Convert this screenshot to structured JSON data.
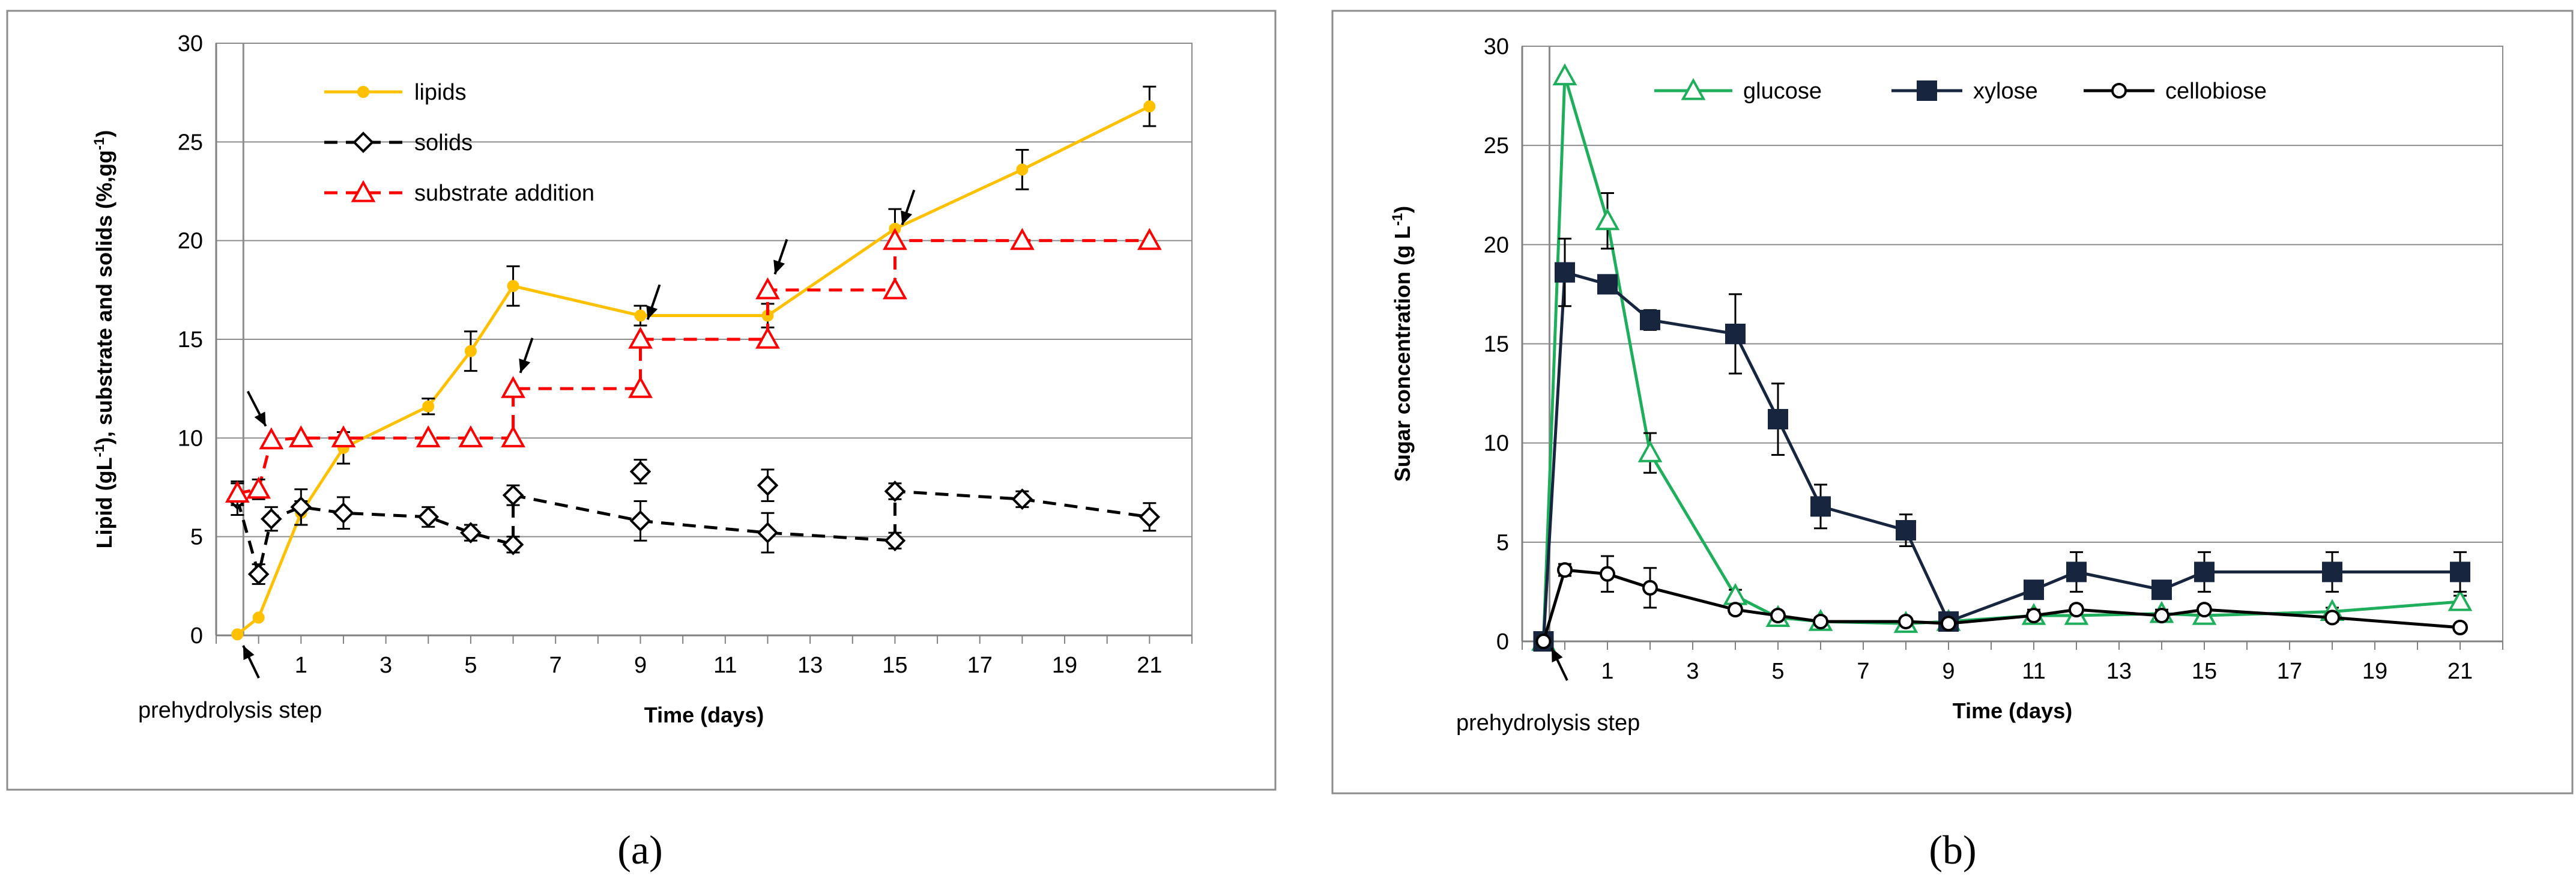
{
  "chart_data": [
    {
      "type": "line",
      "panel_label": "(a)",
      "xlabel": "Time (days)",
      "ylabel_parts": [
        "Lipid (gL",
        "-1",
        "), substrate and solids (%,gg",
        "-1",
        ")"
      ],
      "xlim": [
        -1,
        22
      ],
      "ylim": [
        0,
        30
      ],
      "xticks": [
        1,
        3,
        5,
        7,
        9,
        11,
        13,
        15,
        17,
        19,
        21
      ],
      "yticks": [
        0,
        5,
        10,
        15,
        20,
        25,
        30
      ],
      "grid": "horizontal",
      "legend_position": "top-left",
      "vertical_marker_x": -0.5,
      "annotation": "prehydrolysis step",
      "series": [
        {
          "name": "lipids",
          "color": "#FFC000",
          "marker": "circle-filled",
          "line": "solid",
          "x": [
            -0.5,
            0,
            1,
            2,
            4,
            5,
            6,
            9,
            12,
            15,
            18,
            21
          ],
          "values": [
            0.05,
            0.9,
            6.2,
            9.5,
            11.6,
            14.4,
            17.7,
            16.2,
            16.2,
            20.6,
            23.6,
            26.8
          ],
          "errors": [
            0,
            0,
            0.6,
            0.8,
            0.4,
            1.0,
            1.0,
            0.5,
            0.6,
            1.0,
            1.0,
            1.0
          ]
        },
        {
          "name": "solids",
          "color": "#000000",
          "marker": "diamond-open",
          "line": "dashed",
          "x": [
            -0.5,
            0,
            0.3,
            1,
            2,
            4,
            5,
            6,
            6,
            9,
            12,
            15,
            15,
            18,
            21
          ],
          "values": [
            6.9,
            3.1,
            5.9,
            6.5,
            6.2,
            6.0,
            5.2,
            4.6,
            7.1,
            5.8,
            5.2,
            4.8,
            7.3,
            6.9,
            6.0
          ],
          "errors": [
            0.8,
            0.5,
            0.6,
            0.9,
            0.8,
            0.5,
            0.4,
            0.4,
            0.5,
            1.0,
            1.0,
            0.4,
            0.4,
            0.4,
            0.7
          ],
          "extra_points": [
            {
              "x": 9,
              "y": 8.3,
              "error": 0.6
            },
            {
              "x": 12,
              "y": 7.6,
              "error": 0.8
            }
          ]
        },
        {
          "name": "substrate addition",
          "color": "#FF0000",
          "marker": "triangle-open",
          "line": "dashed",
          "x": [
            -0.5,
            0,
            0.3,
            1,
            2,
            4,
            5,
            6,
            6,
            9,
            9,
            12,
            12,
            15,
            15,
            18,
            21
          ],
          "values": [
            7.2,
            7.4,
            9.9,
            10,
            10,
            10,
            10,
            10,
            12.5,
            12.5,
            15,
            15,
            17.5,
            17.5,
            20,
            20,
            20
          ],
          "errors": [
            0.6,
            0.5,
            0,
            0,
            0,
            0,
            0,
            0,
            0,
            0,
            0,
            0,
            0,
            0,
            0,
            0,
            0
          ]
        }
      ],
      "addition_arrows_x": [
        0,
        6,
        9,
        12,
        15
      ]
    },
    {
      "type": "line",
      "panel_label": "(b)",
      "xlabel": "Time (days)",
      "ylabel_parts": [
        "Sugar concentration (g L",
        "-1",
        ")"
      ],
      "xlim": [
        -1,
        22
      ],
      "ylim": [
        0,
        30
      ],
      "xticks": [
        1,
        3,
        5,
        7,
        9,
        11,
        13,
        15,
        17,
        19,
        21
      ],
      "yticks": [
        0,
        5,
        10,
        15,
        20,
        25,
        30
      ],
      "grid": "horizontal",
      "legend_position": "top",
      "vertical_marker_x": -0.5,
      "annotation": "prehydrolysis step",
      "series": [
        {
          "name": "glucose",
          "color": "#1FAE5B",
          "marker": "triangle-open",
          "line": "solid",
          "x": [
            -0.5,
            0,
            1,
            2,
            4,
            5,
            6,
            8,
            9,
            11,
            12,
            14,
            15,
            18,
            21
          ],
          "values": [
            0,
            28.5,
            21.2,
            9.5,
            2.3,
            1.2,
            1.0,
            0.9,
            1.0,
            1.3,
            1.3,
            1.4,
            1.3,
            1.5,
            2.0
          ],
          "errors": [
            0,
            0,
            1.4,
            1.0,
            0.3,
            0.3,
            0.2,
            0.2,
            0.2,
            0.3,
            0.3,
            0.2,
            0.3,
            0.2,
            0.3
          ]
        },
        {
          "name": "xylose",
          "color": "#17253F",
          "marker": "square-filled",
          "line": "solid",
          "x": [
            -0.5,
            0,
            1,
            2,
            4,
            5,
            6,
            8,
            9,
            11,
            12,
            14,
            15,
            18,
            21
          ],
          "values": [
            0,
            18.6,
            18.0,
            16.2,
            15.5,
            11.2,
            6.8,
            5.6,
            1.0,
            2.6,
            3.5,
            2.6,
            3.5,
            3.5,
            3.5
          ],
          "errors": [
            0,
            1.7,
            0.4,
            0.5,
            2.0,
            1.8,
            1.1,
            0.8,
            0.3,
            0.4,
            1.0,
            0.4,
            1.0,
            1.0,
            1.0
          ]
        },
        {
          "name": "cellobiose",
          "color": "#000000",
          "marker": "circle-open",
          "line": "solid",
          "x": [
            -0.5,
            0,
            1,
            2,
            4,
            5,
            6,
            8,
            9,
            11,
            12,
            14,
            15,
            18,
            21
          ],
          "values": [
            0,
            3.6,
            3.4,
            2.7,
            1.6,
            1.3,
            1.0,
            1.0,
            0.9,
            1.3,
            1.6,
            1.3,
            1.6,
            1.2,
            0.7
          ],
          "errors": [
            0,
            0.3,
            0.9,
            1.0,
            0.2,
            0.2,
            0.1,
            0.1,
            0.1,
            0.2,
            0.2,
            0.2,
            0.2,
            0.2,
            0.1
          ]
        }
      ]
    }
  ]
}
